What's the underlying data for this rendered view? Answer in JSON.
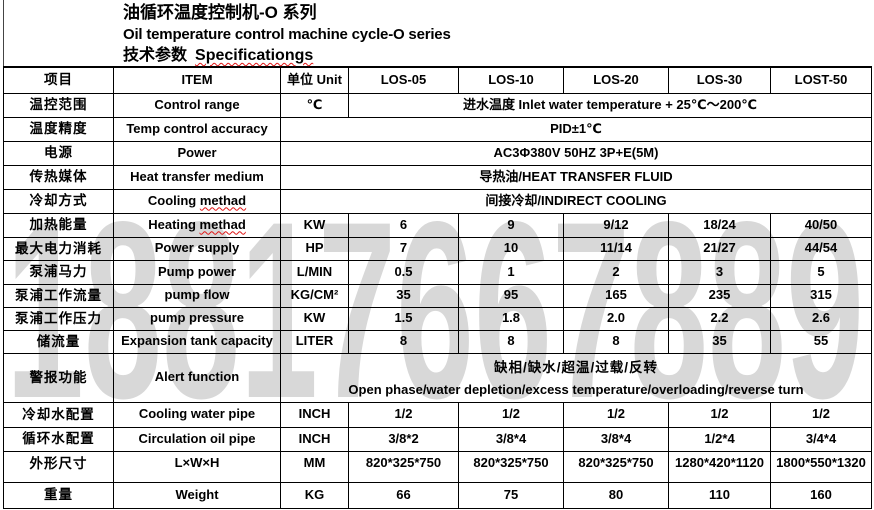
{
  "title": {
    "zh": "油循环温度控制机-O 系列",
    "en": "Oil temperature control machine cycle-O series",
    "specs_zh": "技术参数",
    "specs_en": "Specificationgs"
  },
  "watermark": {
    "text": "18817667889",
    "color": "#d8d8d8"
  },
  "table": {
    "columns": [
      "项目",
      "ITEM",
      "单位 Unit",
      "LOS-05",
      "LOS-10",
      "LOS-20",
      "LOS-30",
      "LOST-50"
    ],
    "rows": [
      {
        "zh": "温控范围",
        "en": "Control range",
        "unit": "℃",
        "span5": "进水温度 Inlet water temperature + 25℃～200℃"
      },
      {
        "zh": "温度精度",
        "en": "Temp control accuracy",
        "span6": "PID±1℃"
      },
      {
        "zh": "电源",
        "en": "Power",
        "span6": "AC3Φ380V 50HZ 3P+E(5M)"
      },
      {
        "zh": "传热媒体",
        "en": "Heat transfer medium",
        "span6": "导热油/HEAT TRANSFER FLUID"
      },
      {
        "zh": "冷却方式",
        "en_pre": "Cooling ",
        "en_bad": "methad",
        "span6": "间接冷却/INDIRECT COOLING"
      },
      {
        "zh": "加热能量",
        "en_pre": "Heating ",
        "en_bad": "methad",
        "unit": "KW",
        "values": [
          "6",
          "9",
          "9/12",
          "18/24",
          "40/50"
        ]
      },
      {
        "zh": "最大电力消耗",
        "en": "Power supply",
        "unit": "HP",
        "values": [
          "7",
          "10",
          "11/14",
          "21/27",
          "44/54"
        ]
      },
      {
        "zh": "泵浦马力",
        "en": "Pump power",
        "unit": "L/MIN",
        "values": [
          "0.5",
          "1",
          "2",
          "3",
          "5"
        ]
      },
      {
        "zh": "泵浦工作流量",
        "en": "pump flow",
        "unit": "KG/CM²",
        "values": [
          "35",
          "95",
          "165",
          "235",
          "315"
        ]
      },
      {
        "zh": "泵浦工作压力",
        "en": "pump pressure",
        "unit": "KW",
        "values": [
          "1.5",
          "1.8",
          "2.0",
          "2.2",
          "2.6"
        ]
      },
      {
        "zh": "储流量",
        "en": "Expansion tank capacity",
        "unit": "LITER",
        "values": [
          "8",
          "8",
          "8",
          "35",
          "55"
        ]
      },
      {
        "zh": "警报功能",
        "en": "Alert function",
        "span6_line1": "缺相/缺水/超温/过载/反转",
        "span6_line2": "Open phase/water depletion/excess temperature/overloading/reverse turn"
      },
      {
        "zh": "冷却水配置",
        "en": "Cooling water pipe",
        "unit": "INCH",
        "values": [
          "1/2",
          "1/2",
          "1/2",
          "1/2",
          "1/2"
        ]
      },
      {
        "zh": "循环水配置",
        "en": "Circulation oil pipe",
        "unit": "INCH",
        "values": [
          "3/8*2",
          "3/8*4",
          "3/8*4",
          "1/2*4",
          "3/4*4"
        ]
      },
      {
        "zh": "外形尺寸",
        "en": "L×W×H",
        "unit": "MM",
        "values": [
          "820*325*750",
          "820*325*750",
          "820*325*750",
          "1280*420*1120",
          "1800*550*1320"
        ],
        "valign": "top"
      },
      {
        "zh": "重量",
        "en": "Weight",
        "unit": "KG",
        "values": [
          "66",
          "75",
          "80",
          "110",
          "160"
        ]
      }
    ]
  }
}
